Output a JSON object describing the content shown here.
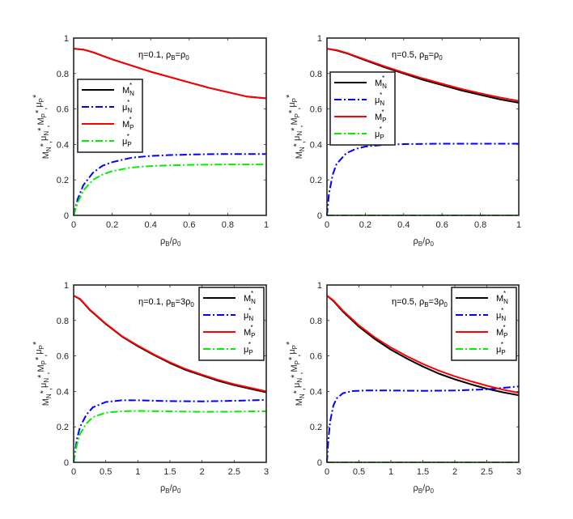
{
  "chart_data": [
    {
      "type": "line",
      "annotation": {
        "text": "η=0.1, ρ",
        "sub1": "B",
        "mid": "=ρ",
        "sub2": "0"
      },
      "xlabel": {
        "base": "ρ",
        "sub1": "B",
        "mid": "/ρ",
        "sub2": "0"
      },
      "ylabel": "M_N*, μ_N*, M_P*, μ_P*",
      "xlim": [
        0,
        1
      ],
      "ylim": [
        0,
        1
      ],
      "xticks": [
        0,
        0.2,
        0.4,
        0.6,
        0.8,
        1
      ],
      "xtick_labels": [
        "0",
        "0.2",
        "0.4",
        "0.6",
        "0.8",
        "1"
      ],
      "yticks": [
        0,
        0.2,
        0.4,
        0.6,
        0.8,
        1
      ],
      "ytick_labels": [
        "0",
        "0.2",
        "0.4",
        "0.6",
        "0.8",
        "1"
      ],
      "legend_position": "middle-left",
      "series": [
        {
          "name": "M_N*",
          "label": "M",
          "sub": "N",
          "sup": "*",
          "color": "#000000",
          "dash": "solid",
          "x": [
            0,
            0.05,
            0.1,
            0.2,
            0.3,
            0.4,
            0.5,
            0.6,
            0.7,
            0.8,
            0.9,
            1.0
          ],
          "y": [
            0.94,
            0.935,
            0.92,
            0.88,
            0.845,
            0.81,
            0.78,
            0.75,
            0.72,
            0.695,
            0.67,
            0.66
          ]
        },
        {
          "name": "μ_N*",
          "label": "μ",
          "sub": "N",
          "sup": "*",
          "color": "#0000ff",
          "dash": "dashdot",
          "x": [
            0,
            0.02,
            0.05,
            0.1,
            0.15,
            0.2,
            0.3,
            0.4,
            0.5,
            0.6,
            0.7,
            0.8,
            0.9,
            1.0
          ],
          "y": [
            0,
            0.09,
            0.17,
            0.24,
            0.28,
            0.3,
            0.325,
            0.335,
            0.34,
            0.343,
            0.345,
            0.346,
            0.346,
            0.346
          ]
        },
        {
          "name": "M_P*",
          "label": "M",
          "sub": "P",
          "sup": "*",
          "color": "#ff0000",
          "dash": "solid",
          "x": [
            0,
            0.05,
            0.1,
            0.2,
            0.3,
            0.4,
            0.5,
            0.6,
            0.7,
            0.8,
            0.9,
            1.0
          ],
          "y": [
            0.94,
            0.935,
            0.92,
            0.88,
            0.845,
            0.81,
            0.78,
            0.75,
            0.72,
            0.695,
            0.67,
            0.66
          ]
        },
        {
          "name": "μ_P*",
          "label": "μ",
          "sub": "P",
          "sup": "*",
          "color": "#00ee00",
          "dash": "dashdot",
          "x": [
            0,
            0.02,
            0.05,
            0.1,
            0.15,
            0.2,
            0.3,
            0.4,
            0.5,
            0.6,
            0.7,
            0.8,
            0.9,
            1.0
          ],
          "y": [
            0,
            0.07,
            0.14,
            0.2,
            0.23,
            0.25,
            0.27,
            0.278,
            0.282,
            0.285,
            0.286,
            0.287,
            0.287,
            0.287
          ]
        }
      ]
    },
    {
      "type": "line",
      "annotation": {
        "text": "η=0.5, ρ",
        "sub1": "B",
        "mid": "=ρ",
        "sub2": "0"
      },
      "xlabel": {
        "base": "ρ",
        "sub1": "B",
        "mid": "/ρ",
        "sub2": "0"
      },
      "ylabel": "M_N*, μ_N*, M_P*, μ_P*",
      "xlim": [
        0,
        1
      ],
      "ylim": [
        0,
        1
      ],
      "xticks": [
        0,
        0.2,
        0.4,
        0.6,
        0.8,
        1
      ],
      "xtick_labels": [
        "0",
        "0.2",
        "0.4",
        "0.6",
        "0.8",
        "1"
      ],
      "yticks": [
        0,
        0.2,
        0.4,
        0.6,
        0.8,
        1
      ],
      "ytick_labels": [
        "0",
        "0.2",
        "0.4",
        "0.6",
        "0.8",
        "1"
      ],
      "legend_position": "top-left",
      "series": [
        {
          "name": "M_N*",
          "label": "M",
          "sub": "N",
          "sup": "*",
          "color": "#000000",
          "dash": "solid",
          "x": [
            0,
            0.05,
            0.1,
            0.2,
            0.3,
            0.4,
            0.5,
            0.6,
            0.7,
            0.8,
            0.9,
            1.0
          ],
          "y": [
            0.94,
            0.93,
            0.915,
            0.875,
            0.835,
            0.8,
            0.765,
            0.735,
            0.705,
            0.68,
            0.655,
            0.635
          ]
        },
        {
          "name": "μ_N*",
          "label": "μ",
          "sub": "N",
          "sup": "*",
          "color": "#0000ff",
          "dash": "dashdot",
          "x": [
            0,
            0.01,
            0.03,
            0.05,
            0.1,
            0.15,
            0.2,
            0.3,
            0.4,
            0.5,
            0.6,
            0.8,
            1.0
          ],
          "y": [
            0,
            0.12,
            0.23,
            0.29,
            0.35,
            0.375,
            0.388,
            0.398,
            0.402,
            0.403,
            0.404,
            0.404,
            0.404
          ]
        },
        {
          "name": "M_P*",
          "label": "M",
          "sub": "P",
          "sup": "*",
          "color": "#ff0000",
          "dash": "solid",
          "x": [
            0,
            0.05,
            0.1,
            0.2,
            0.3,
            0.4,
            0.5,
            0.6,
            0.7,
            0.8,
            0.9,
            1.0
          ],
          "y": [
            0.94,
            0.932,
            0.917,
            0.878,
            0.84,
            0.805,
            0.772,
            0.742,
            0.713,
            0.688,
            0.665,
            0.645
          ]
        },
        {
          "name": "μ_P*",
          "label": "μ",
          "sub": "P",
          "sup": "*",
          "color": "#00ee00",
          "dash": "dashdot",
          "x": [
            0,
            0.25,
            0.5,
            0.75,
            1.0
          ],
          "y": [
            0,
            0,
            0,
            0,
            0
          ]
        }
      ]
    },
    {
      "type": "line",
      "annotation": {
        "text": "η=0.1, ρ",
        "sub1": "B",
        "mid": "=3ρ",
        "sub2": "0"
      },
      "xlabel": {
        "base": "ρ",
        "sub1": "B",
        "mid": "/ρ",
        "sub2": "0"
      },
      "ylabel": "M_N*, μ_N*, M_P*, μ_P*",
      "xlim": [
        0,
        3
      ],
      "ylim": [
        0,
        1
      ],
      "xticks": [
        0,
        0.5,
        1,
        1.5,
        2,
        2.5,
        3
      ],
      "xtick_labels": [
        "0",
        "0.5",
        "1",
        "1.5",
        "2",
        "2.5",
        "3"
      ],
      "yticks": [
        0,
        0.2,
        0.4,
        0.6,
        0.8,
        1
      ],
      "ytick_labels": [
        "0",
        "0.2",
        "0.4",
        "0.6",
        "0.8",
        "1"
      ],
      "legend_position": "top-right",
      "series": [
        {
          "name": "M_N*",
          "label": "M",
          "sub": "N",
          "sup": "*",
          "color": "#000000",
          "dash": "solid",
          "x": [
            0,
            0.1,
            0.25,
            0.5,
            0.75,
            1.0,
            1.25,
            1.5,
            1.75,
            2.0,
            2.25,
            2.5,
            2.75,
            3.0
          ],
          "y": [
            0.94,
            0.92,
            0.86,
            0.78,
            0.71,
            0.655,
            0.605,
            0.56,
            0.52,
            0.49,
            0.46,
            0.435,
            0.415,
            0.395
          ]
        },
        {
          "name": "μ_N*",
          "label": "μ",
          "sub": "N",
          "sup": "*",
          "color": "#0000ff",
          "dash": "dashdot",
          "x": [
            0,
            0.05,
            0.1,
            0.2,
            0.3,
            0.5,
            0.75,
            1.0,
            1.5,
            2.0,
            2.5,
            3.0
          ],
          "y": [
            0,
            0.13,
            0.2,
            0.27,
            0.31,
            0.34,
            0.35,
            0.35,
            0.345,
            0.344,
            0.347,
            0.352
          ]
        },
        {
          "name": "M_P*",
          "label": "M",
          "sub": "P",
          "sup": "*",
          "color": "#ff0000",
          "dash": "solid",
          "x": [
            0,
            0.1,
            0.25,
            0.5,
            0.75,
            1.0,
            1.25,
            1.5,
            1.75,
            2.0,
            2.25,
            2.5,
            2.75,
            3.0
          ],
          "y": [
            0.94,
            0.922,
            0.862,
            0.782,
            0.712,
            0.658,
            0.608,
            0.564,
            0.525,
            0.494,
            0.465,
            0.44,
            0.42,
            0.4
          ]
        },
        {
          "name": "μ_P*",
          "label": "μ",
          "sub": "P",
          "sup": "*",
          "color": "#00ee00",
          "dash": "dashdot",
          "x": [
            0,
            0.05,
            0.1,
            0.2,
            0.3,
            0.5,
            0.75,
            1.0,
            1.5,
            2.0,
            2.5,
            3.0
          ],
          "y": [
            0,
            0.1,
            0.16,
            0.22,
            0.255,
            0.28,
            0.288,
            0.29,
            0.287,
            0.285,
            0.286,
            0.288
          ]
        }
      ]
    },
    {
      "type": "line",
      "annotation": {
        "text": "η=0.5, ρ",
        "sub1": "B",
        "mid": "=3ρ",
        "sub2": "0"
      },
      "xlabel": {
        "base": "ρ",
        "sub1": "B",
        "mid": "/ρ",
        "sub2": "0"
      },
      "ylabel": "M_N*, μ_N*, M_P*, μ_P*",
      "xlim": [
        0,
        3
      ],
      "ylim": [
        0,
        1
      ],
      "xticks": [
        0,
        0.5,
        1,
        1.5,
        2,
        2.5,
        3
      ],
      "xtick_labels": [
        "0",
        "0.5",
        "1",
        "1.5",
        "2",
        "2.5",
        "3"
      ],
      "yticks": [
        0,
        0.2,
        0.4,
        0.6,
        0.8,
        1
      ],
      "ytick_labels": [
        "0",
        "0.2",
        "0.4",
        "0.6",
        "0.8",
        "1"
      ],
      "legend_position": "top-right",
      "series": [
        {
          "name": "M_N*",
          "label": "M",
          "sub": "N",
          "sup": "*",
          "color": "#000000",
          "dash": "solid",
          "x": [
            0,
            0.1,
            0.25,
            0.5,
            0.75,
            1.0,
            1.25,
            1.5,
            1.75,
            2.0,
            2.25,
            2.5,
            2.75,
            3.0
          ],
          "y": [
            0.94,
            0.91,
            0.85,
            0.765,
            0.695,
            0.635,
            0.585,
            0.54,
            0.5,
            0.468,
            0.44,
            0.415,
            0.395,
            0.378
          ]
        },
        {
          "name": "μ_N*",
          "label": "μ",
          "sub": "N",
          "sup": "*",
          "color": "#0000ff",
          "dash": "dashdot",
          "x": [
            0,
            0.02,
            0.05,
            0.1,
            0.15,
            0.25,
            0.4,
            0.6,
            1.0,
            1.5,
            2.0,
            2.5,
            3.0
          ],
          "y": [
            0,
            0.12,
            0.23,
            0.32,
            0.36,
            0.39,
            0.402,
            0.405,
            0.405,
            0.403,
            0.405,
            0.412,
            0.428
          ]
        },
        {
          "name": "M_P*",
          "label": "M",
          "sub": "P",
          "sup": "*",
          "color": "#ff0000",
          "dash": "solid",
          "x": [
            0,
            0.1,
            0.25,
            0.5,
            0.75,
            1.0,
            1.25,
            1.5,
            1.75,
            2.0,
            2.25,
            2.5,
            2.75,
            3.0
          ],
          "y": [
            0.94,
            0.913,
            0.855,
            0.772,
            0.704,
            0.647,
            0.598,
            0.555,
            0.517,
            0.485,
            0.457,
            0.432,
            0.41,
            0.392
          ]
        },
        {
          "name": "μ_P*",
          "label": "μ",
          "sub": "P",
          "sup": "*",
          "color": "#00ee00",
          "dash": "dashdot",
          "x": [
            0,
            0.75,
            1.5,
            2.25,
            3.0
          ],
          "y": [
            0,
            0,
            0,
            0,
            0
          ]
        }
      ]
    }
  ]
}
